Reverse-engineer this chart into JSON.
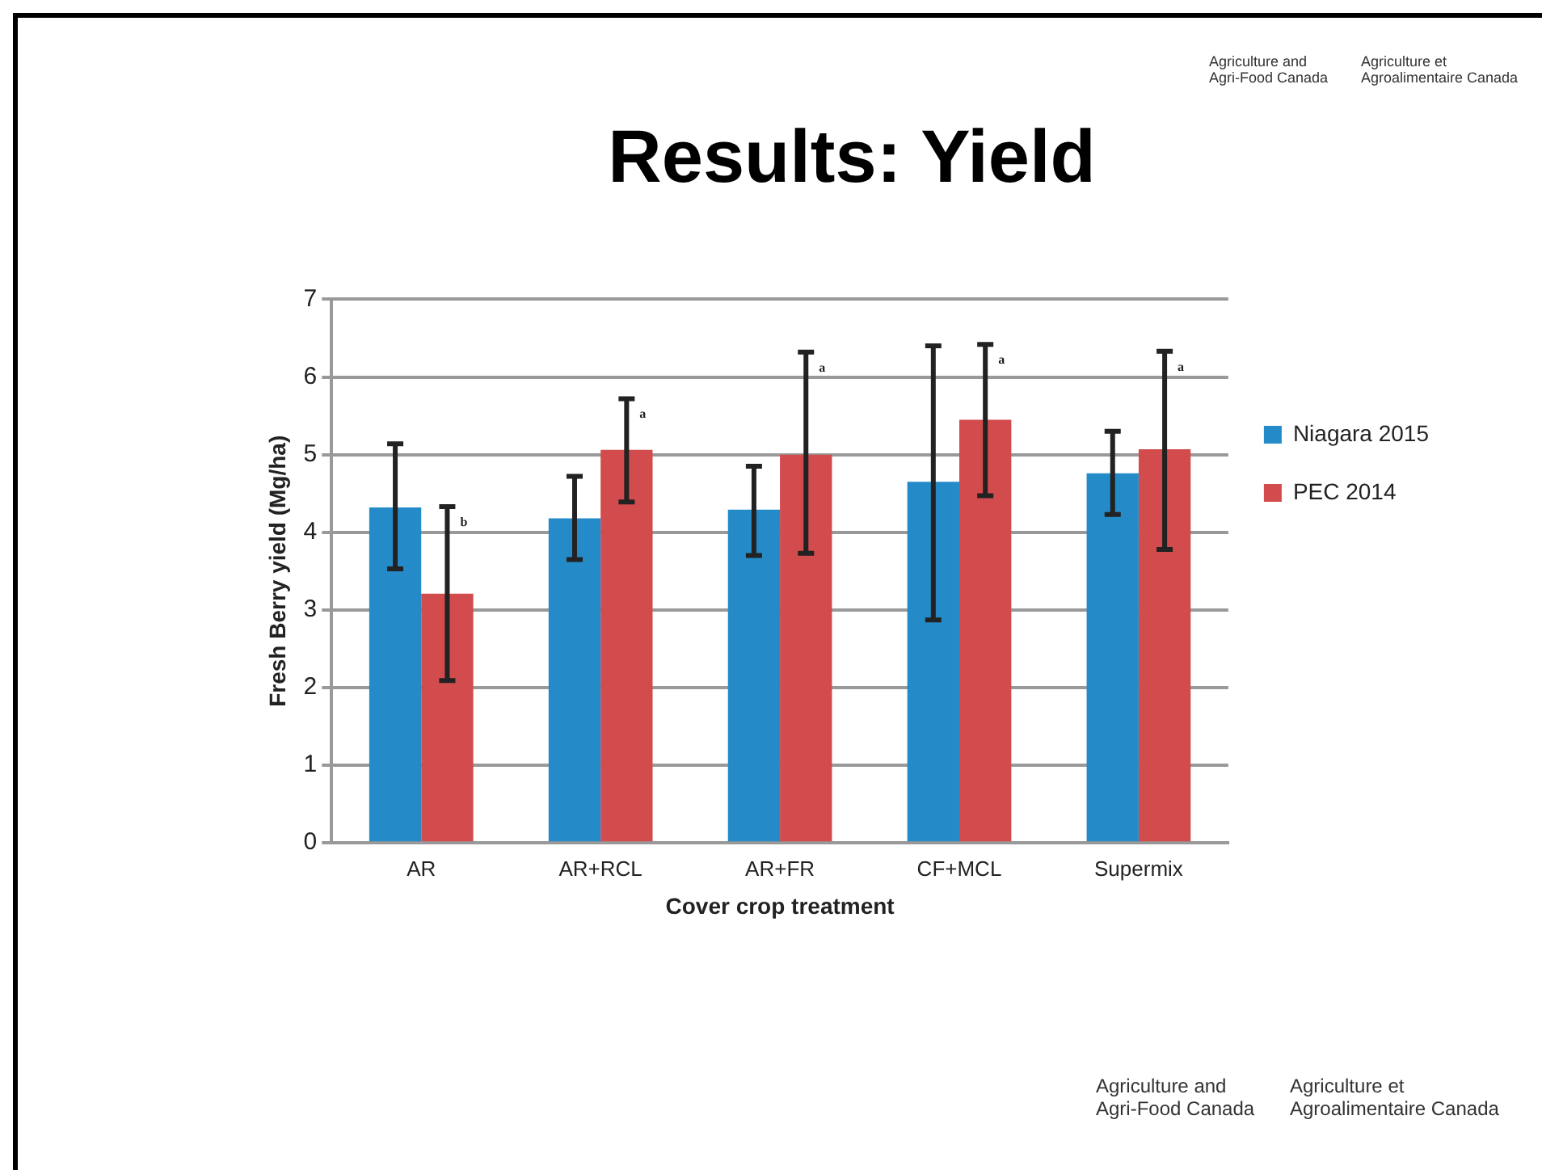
{
  "chart_data": {
    "type": "bar",
    "title": "Results: Yield",
    "xlabel": "Cover crop treatment",
    "ylabel": "Fresh Berry yield (Mg/ha)",
    "categories": [
      "AR",
      "AR+RCL",
      "AR+FR",
      "CF+MCL",
      "Supermix"
    ],
    "series": [
      {
        "name": "Niagara 2015",
        "color": "#258bc8",
        "values": [
          4.32,
          4.18,
          4.29,
          4.65,
          4.76
        ],
        "errors": [
          [
            3.53,
            5.14
          ],
          [
            3.65,
            4.72
          ],
          [
            3.7,
            4.85
          ],
          [
            2.87,
            6.4
          ],
          [
            4.23,
            5.3
          ]
        ]
      },
      {
        "name": "PEC 2014",
        "color": "#d24b4d",
        "values": [
          3.21,
          5.06,
          5.0,
          5.45,
          5.07
        ],
        "errors": [
          [
            2.09,
            4.33
          ],
          [
            4.39,
            5.72
          ],
          [
            3.73,
            6.32
          ],
          [
            4.47,
            6.42
          ],
          [
            3.78,
            6.33
          ]
        ]
      }
    ],
    "ylim": [
      0,
      7
    ],
    "yticks": [
      0,
      1,
      2,
      3,
      4,
      5,
      6,
      7
    ],
    "grid": "y",
    "legend": "right",
    "annotations": [
      "b",
      "a",
      "a",
      "a",
      "a",
      "Agriculture and Agri-Food Canada",
      "Agriculture et Agroalimentaire Canada",
      "Agriculture and Agri-Food Canada",
      "Agriculture et Agroalimentaire Canada"
    ]
  }
}
